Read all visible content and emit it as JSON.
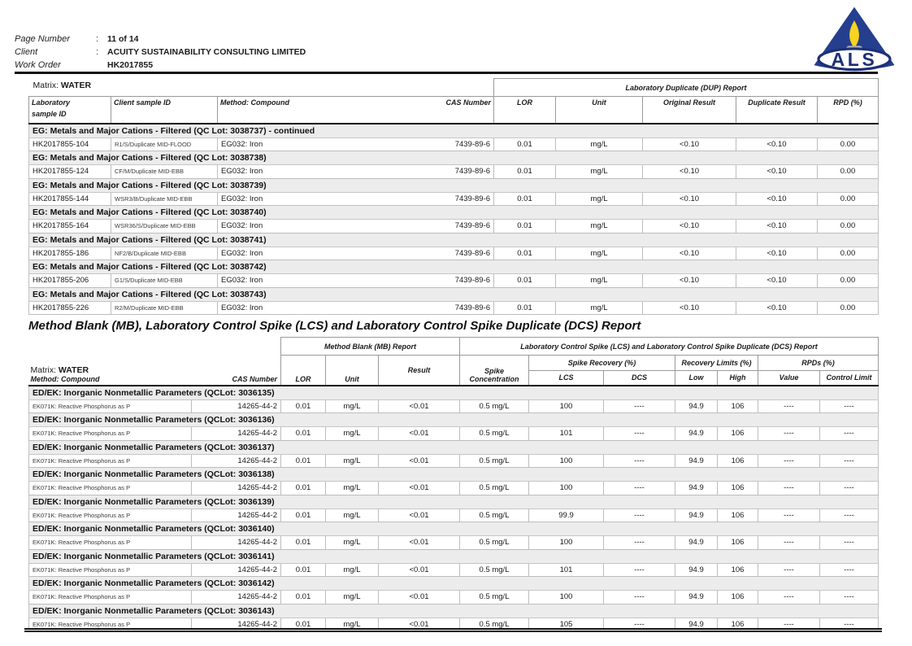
{
  "header": {
    "fields": [
      {
        "label": "Page Number",
        "sep": ":",
        "value": "11 of 14"
      },
      {
        "label": "Client",
        "sep": ":",
        "value": "ACUITY SUSTAINABILITY CONSULTING LIMITED"
      },
      {
        "label": "Work Order",
        "sep": ":",
        "value": "HK2017855"
      }
    ],
    "logo": {
      "text": "ALS",
      "triangle_color": "#253f8e",
      "flame_color": "#f7d41f",
      "base_color": "#a9aeb6",
      "ring_color": "#1d3076",
      "text_color": "#1d3076"
    }
  },
  "dup_table": {
    "matrix_label": "Matrix:",
    "matrix_value": "WATER",
    "group_header": "Laboratory Duplicate (DUP) Report",
    "columns": {
      "lab_id_line1": "Laboratory",
      "lab_id_line2": "sample ID",
      "client_id": "Client sample ID",
      "method": "Method: Compound",
      "cas": "CAS Number",
      "lor": "LOR",
      "unit": "Unit",
      "original": "Original Result",
      "duplicate": "Duplicate Result",
      "rpd": "RPD (%)"
    },
    "sections": [
      {
        "title": "EG: Metals and Major Cations - Filtered  (QC Lot: 3038737)  - continued",
        "rows": [
          [
            "HK2017855-104",
            "R1/S/Duplicate MID-FLOOD",
            "EG032: Iron",
            "7439-89-6",
            "0.01",
            "mg/L",
            "<0.10",
            "<0.10",
            "0.00"
          ]
        ]
      },
      {
        "title": "EG: Metals and Major Cations - Filtered  (QC Lot: 3038738)",
        "rows": [
          [
            "HK2017855-124",
            "CF/M/Duplicate MID-EBB",
            "EG032: Iron",
            "7439-89-6",
            "0.01",
            "mg/L",
            "<0.10",
            "<0.10",
            "0.00"
          ]
        ]
      },
      {
        "title": "EG: Metals and Major Cations - Filtered  (QC Lot: 3038739)",
        "rows": [
          [
            "HK2017855-144",
            "WSR3/B/Duplicate MID-EBB",
            "EG032: Iron",
            "7439-89-6",
            "0.01",
            "mg/L",
            "<0.10",
            "<0.10",
            "0.00"
          ]
        ]
      },
      {
        "title": "EG: Metals and Major Cations - Filtered  (QC Lot: 3038740)",
        "rows": [
          [
            "HK2017855-164",
            "WSR36/S/Duplicate MID-EBB",
            "EG032: Iron",
            "7439-89-6",
            "0.01",
            "mg/L",
            "<0.10",
            "<0.10",
            "0.00"
          ]
        ]
      },
      {
        "title": "EG: Metals and Major Cations - Filtered  (QC Lot: 3038741)",
        "rows": [
          [
            "HK2017855-186",
            "NF2/B/Duplicate MID-EBB",
            "EG032: Iron",
            "7439-89-6",
            "0.01",
            "mg/L",
            "<0.10",
            "<0.10",
            "0.00"
          ]
        ]
      },
      {
        "title": "EG: Metals and Major Cations - Filtered  (QC Lot: 3038742)",
        "rows": [
          [
            "HK2017855-206",
            "G1/S/Duplicate MID-EBB",
            "EG032: Iron",
            "7439-89-6",
            "0.01",
            "mg/L",
            "<0.10",
            "<0.10",
            "0.00"
          ]
        ]
      },
      {
        "title": "EG: Metals and Major Cations - Filtered  (QC Lot: 3038743)",
        "rows": [
          [
            "HK2017855-226",
            "R2/M/Duplicate MID-EBB",
            "EG032: Iron",
            "7439-89-6",
            "0.01",
            "mg/L",
            "<0.10",
            "<0.10",
            "0.00"
          ]
        ]
      }
    ]
  },
  "mb_heading": "Method Blank (MB), Laboratory Control Spike (LCS) and Laboratory Control Spike Duplicate (DCS) Report",
  "mb_table": {
    "matrix_label": "Matrix:",
    "matrix_value": "WATER",
    "group_headers": {
      "mb": "Method Blank (MB) Report",
      "lcs": "Laboratory Control Spike (LCS) and Laboratory Control Spike Duplicate (DCS) Report",
      "spike_recovery": "Spike Recovery (%)",
      "recovery_limits": "Recovery Limits (%)",
      "rpds": "RPDs (%)"
    },
    "columns": {
      "method": "Method: Compound",
      "cas": "CAS Number",
      "lor": "LOR",
      "unit": "Unit",
      "result": "Result",
      "spike_line1": "Spike",
      "spike_line2": "Concentration",
      "lcs": "LCS",
      "dcs": "DCS",
      "low": "Low",
      "high": "High",
      "value": "Value",
      "control_limit": "Control Limit"
    },
    "sections": [
      {
        "title": "ED/EK: Inorganic Nonmetallic Parameters  (QCLot: 3036135)",
        "rows": [
          [
            "EK071K: Reactive Phosphorus as P",
            "14265-44-2",
            "0.01",
            "mg/L",
            "<0.01",
            "0.5 mg/L",
            "100",
            "----",
            "94.9",
            "106",
            "----",
            "----"
          ]
        ]
      },
      {
        "title": "ED/EK: Inorganic Nonmetallic Parameters  (QCLot: 3036136)",
        "rows": [
          [
            "EK071K: Reactive Phosphorus as P",
            "14265-44-2",
            "0.01",
            "mg/L",
            "<0.01",
            "0.5 mg/L",
            "101",
            "----",
            "94.9",
            "106",
            "----",
            "----"
          ]
        ]
      },
      {
        "title": "ED/EK: Inorganic Nonmetallic Parameters  (QCLot: 3036137)",
        "rows": [
          [
            "EK071K: Reactive Phosphorus as P",
            "14265-44-2",
            "0.01",
            "mg/L",
            "<0.01",
            "0.5 mg/L",
            "100",
            "----",
            "94.9",
            "106",
            "----",
            "----"
          ]
        ]
      },
      {
        "title": "ED/EK: Inorganic Nonmetallic Parameters  (QCLot: 3036138)",
        "rows": [
          [
            "EK071K: Reactive Phosphorus as P",
            "14265-44-2",
            "0.01",
            "mg/L",
            "<0.01",
            "0.5 mg/L",
            "100",
            "----",
            "94.9",
            "106",
            "----",
            "----"
          ]
        ]
      },
      {
        "title": "ED/EK: Inorganic Nonmetallic Parameters  (QCLot: 3036139)",
        "rows": [
          [
            "EK071K: Reactive Phosphorus as P",
            "14265-44-2",
            "0.01",
            "mg/L",
            "<0.01",
            "0.5 mg/L",
            "99.9",
            "----",
            "94.9",
            "106",
            "----",
            "----"
          ]
        ]
      },
      {
        "title": "ED/EK: Inorganic Nonmetallic Parameters  (QCLot: 3036140)",
        "rows": [
          [
            "EK071K: Reactive Phosphorus as P",
            "14265-44-2",
            "0.01",
            "mg/L",
            "<0.01",
            "0.5 mg/L",
            "100",
            "----",
            "94.9",
            "106",
            "----",
            "----"
          ]
        ]
      },
      {
        "title": "ED/EK: Inorganic Nonmetallic Parameters  (QCLot: 3036141)",
        "rows": [
          [
            "EK071K: Reactive Phosphorus as P",
            "14265-44-2",
            "0.01",
            "mg/L",
            "<0.01",
            "0.5 mg/L",
            "101",
            "----",
            "94.9",
            "106",
            "----",
            "----"
          ]
        ]
      },
      {
        "title": "ED/EK: Inorganic Nonmetallic Parameters  (QCLot: 3036142)",
        "rows": [
          [
            "EK071K: Reactive Phosphorus as P",
            "14265-44-2",
            "0.01",
            "mg/L",
            "<0.01",
            "0.5 mg/L",
            "100",
            "----",
            "94.9",
            "106",
            "----",
            "----"
          ]
        ]
      },
      {
        "title": "ED/EK: Inorganic Nonmetallic Parameters  (QCLot: 3036143)",
        "rows": [
          [
            "EK071K: Reactive Phosphorus as P",
            "14265-44-2",
            "0.01",
            "mg/L",
            "<0.01",
            "0.5 mg/L",
            "105",
            "----",
            "94.9",
            "106",
            "----",
            "----"
          ]
        ]
      }
    ]
  }
}
